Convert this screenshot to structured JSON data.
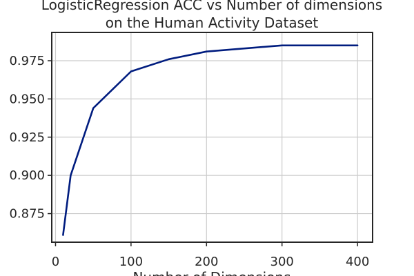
{
  "chart_data": {
    "type": "line",
    "title": "LogisticRegression ACC vs Number of dimensions",
    "subtitle": "on the Human Activity Dataset",
    "xlabel": "Number of Dimensions",
    "ylabel": "",
    "xlim": [
      -5,
      420
    ],
    "ylim": [
      0.8563,
      0.9935
    ],
    "grid": true,
    "x_ticks": [
      0,
      100,
      200,
      300,
      400
    ],
    "y_ticks": [
      0.875,
      0.9,
      0.925,
      0.95,
      0.975
    ],
    "x_tick_labels": [
      "0",
      "100",
      "200",
      "300",
      "400"
    ],
    "y_tick_labels": [
      "0.875",
      "0.900",
      "0.925",
      "0.950",
      "0.975"
    ],
    "series": [
      {
        "color": "#001c7f",
        "x": [
          10,
          20,
          50,
          100,
          150,
          200,
          300,
          400
        ],
        "y": [
          0.861,
          0.9,
          0.944,
          0.968,
          0.976,
          0.981,
          0.985,
          0.985
        ]
      }
    ]
  }
}
